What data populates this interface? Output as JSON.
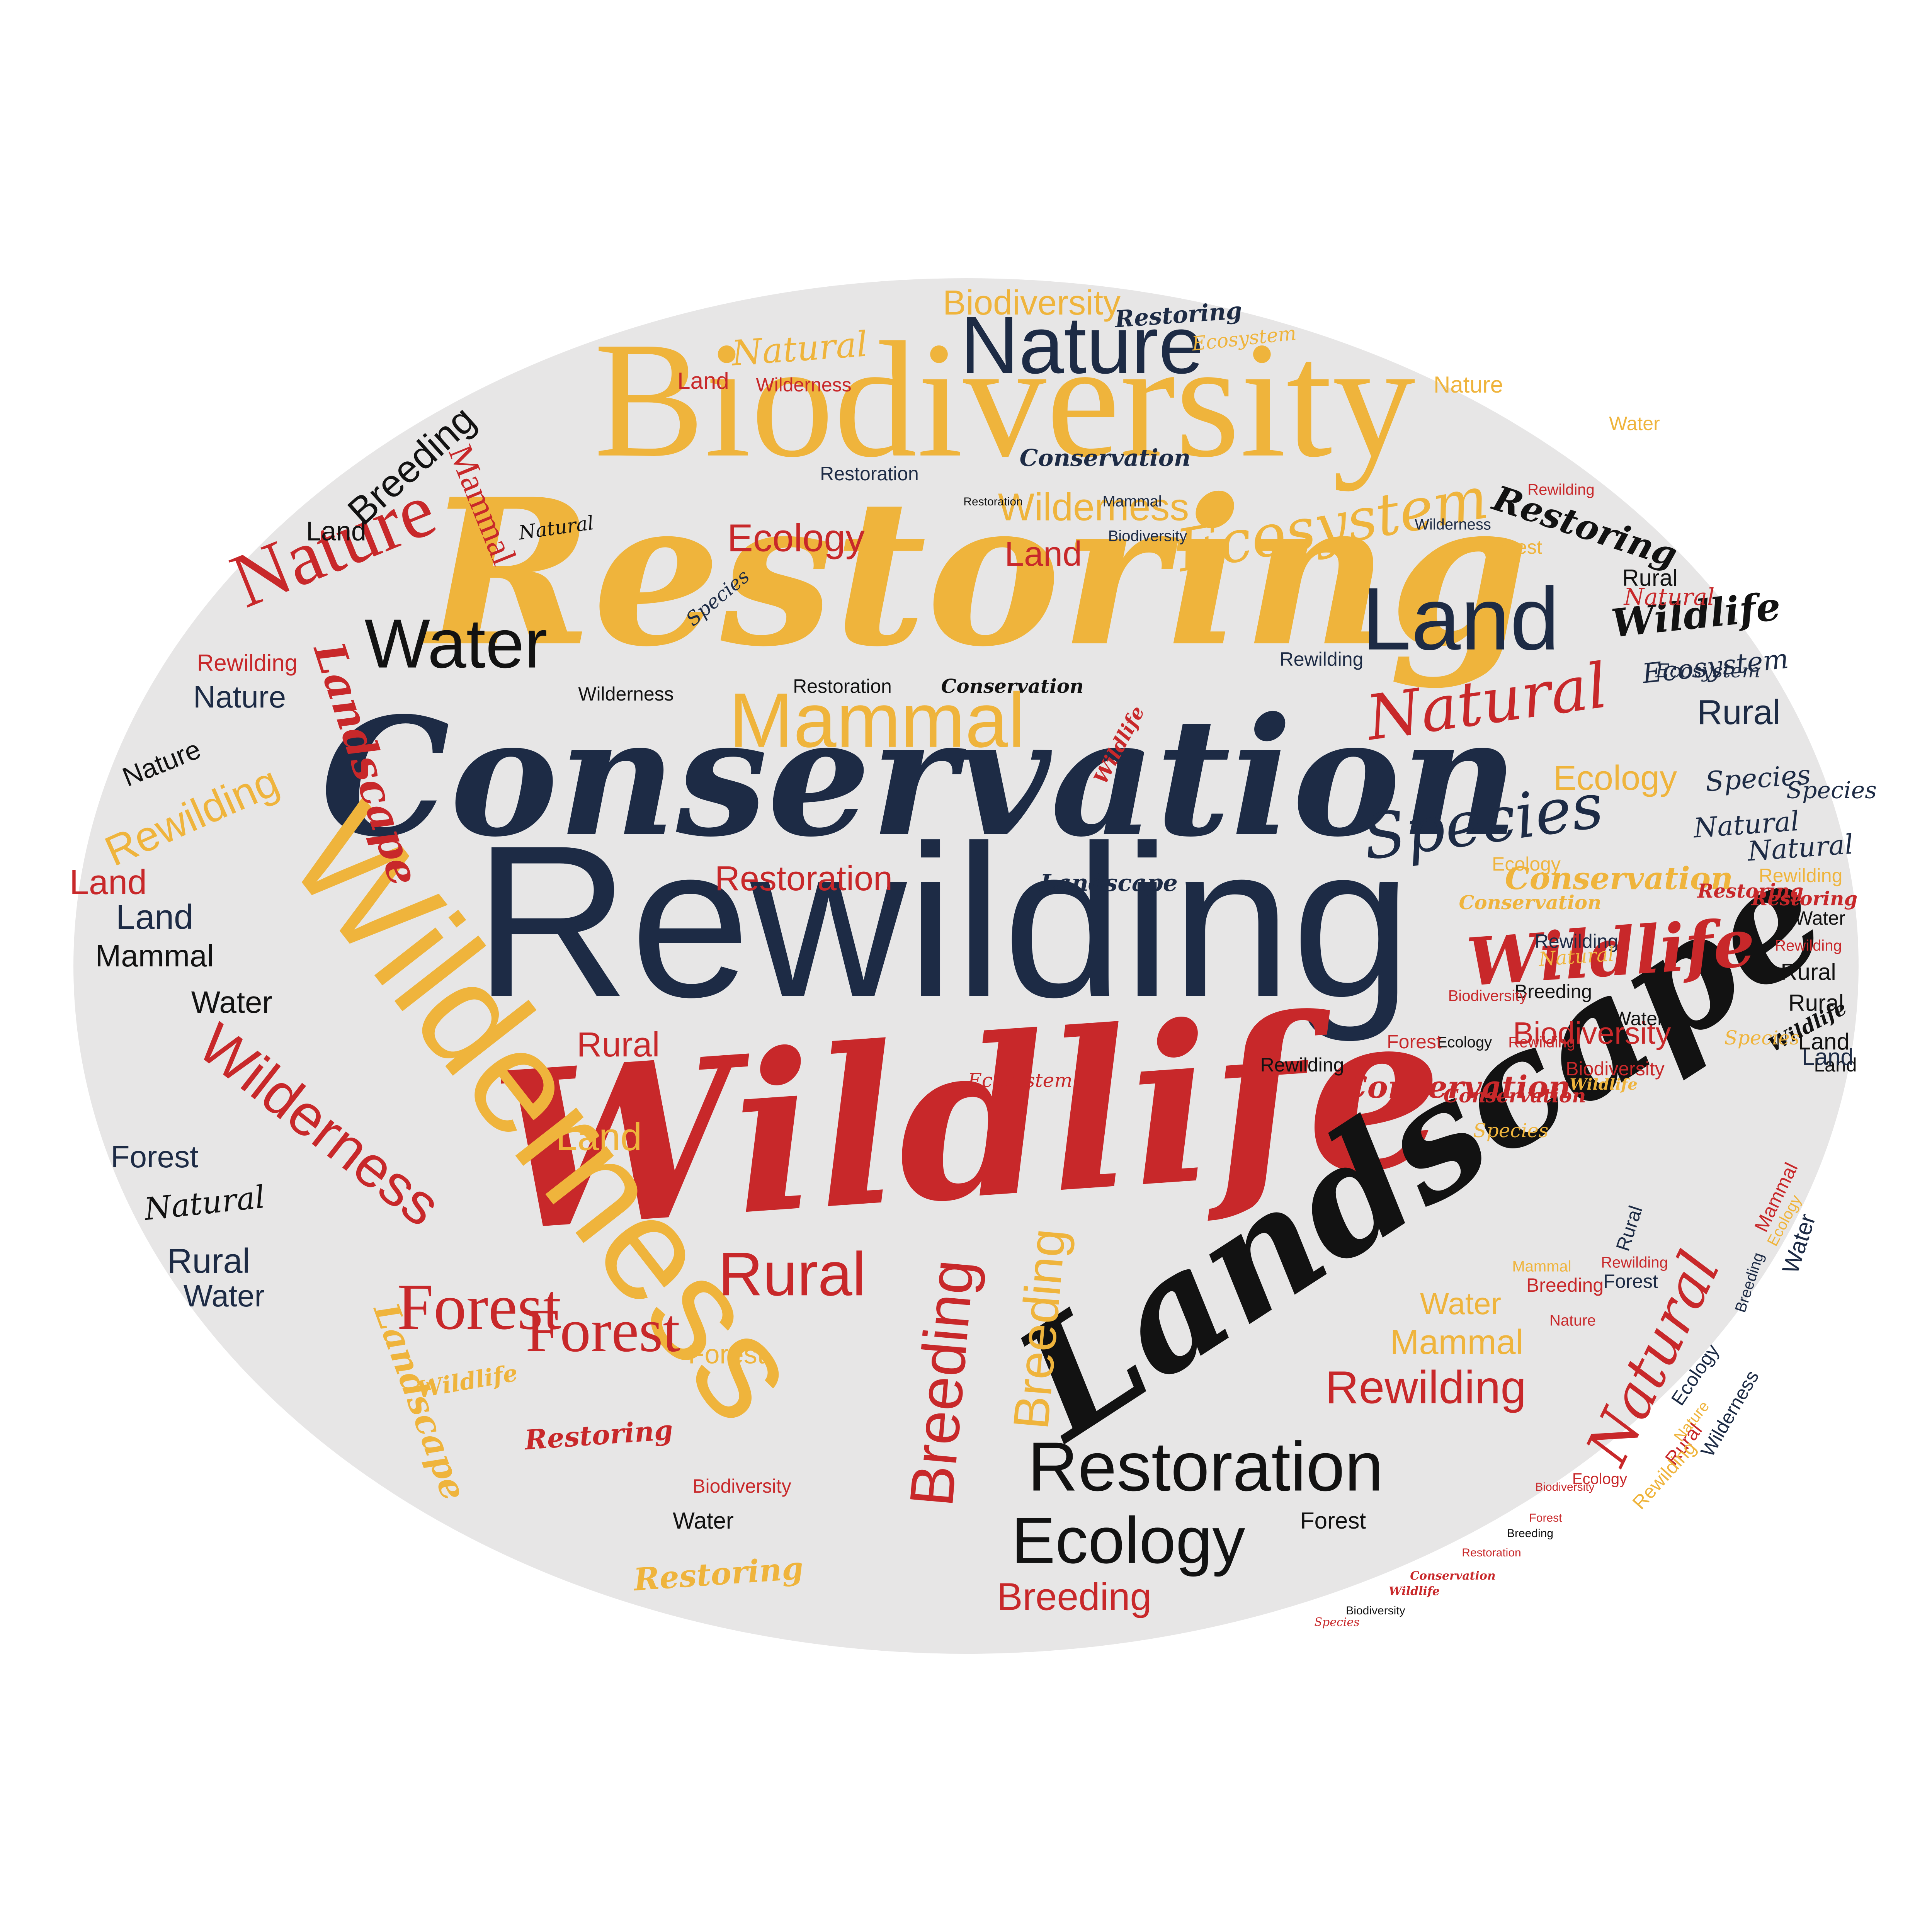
{
  "colors": {
    "background": "#ffffff",
    "ellipse": "#e7e6e6",
    "navy": "#1d2b45",
    "gold": "#efb43c",
    "red": "#c8282a",
    "black": "#121212"
  },
  "words": [
    {
      "text": "Conservation",
      "color": "navy"
    },
    {
      "text": "Rewilding",
      "color": "navy"
    },
    {
      "text": "Wildlife",
      "color": "red"
    },
    {
      "text": "Restoring",
      "color": "gold"
    },
    {
      "text": "Biodiversity",
      "color": "gold"
    },
    {
      "text": "Landscape",
      "color": "black"
    },
    {
      "text": "Wilderness",
      "color": "gold"
    },
    {
      "text": "Nature",
      "color": "navy"
    },
    {
      "text": "Land",
      "color": "navy"
    },
    {
      "text": "Water",
      "color": "black"
    },
    {
      "text": "Nature",
      "color": "red"
    },
    {
      "text": "Mammal",
      "color": "gold"
    },
    {
      "text": "Natural",
      "color": "red"
    },
    {
      "text": "Species",
      "color": "navy"
    },
    {
      "text": "Ecosystem",
      "color": "gold"
    },
    {
      "text": "Wilderness",
      "color": "gold"
    },
    {
      "text": "Ecology",
      "color": "red"
    },
    {
      "text": "Land",
      "color": "red"
    },
    {
      "text": "Wildlife",
      "color": "red"
    },
    {
      "text": "Restoration",
      "color": "black"
    },
    {
      "text": "Ecology",
      "color": "black"
    },
    {
      "text": "Forest",
      "color": "red"
    },
    {
      "text": "Forest",
      "color": "red"
    },
    {
      "text": "Rural",
      "color": "red"
    },
    {
      "text": "Breeding",
      "color": "red"
    },
    {
      "text": "Wilderness",
      "color": "red"
    },
    {
      "text": "Rewilding",
      "color": "gold"
    },
    {
      "text": "Mammal",
      "color": "red"
    },
    {
      "text": "Breeding",
      "color": "black"
    },
    {
      "text": "Landscape",
      "color": "red"
    },
    {
      "text": "Restoring",
      "color": "black"
    },
    {
      "text": "Wildlife",
      "color": "black"
    },
    {
      "text": "Ecosystem",
      "color": "navy"
    },
    {
      "text": "Natural",
      "color": "red"
    },
    {
      "text": "Rural",
      "color": "navy"
    },
    {
      "text": "Ecology",
      "color": "gold"
    },
    {
      "text": "Species",
      "color": "navy"
    },
    {
      "text": "Natural",
      "color": "navy"
    },
    {
      "text": "Conservation",
      "color": "gold"
    },
    {
      "text": "Restoring",
      "color": "red"
    },
    {
      "text": "Biodiversity",
      "color": "red"
    },
    {
      "text": "Conservation",
      "color": "red"
    },
    {
      "text": "Rewilding",
      "color": "red"
    },
    {
      "text": "Mammal",
      "color": "gold"
    },
    {
      "text": "Water",
      "color": "gold"
    },
    {
      "text": "Breeding",
      "color": "gold"
    },
    {
      "text": "Rural",
      "color": "red"
    },
    {
      "text": "Land",
      "color": "gold"
    },
    {
      "text": "Restoration",
      "color": "red"
    },
    {
      "text": "Breeding",
      "color": "red"
    },
    {
      "text": "Restoring",
      "color": "gold"
    },
    {
      "text": "Forest",
      "color": "gold"
    },
    {
      "text": "Restoring",
      "color": "red"
    },
    {
      "text": "Wildlife",
      "color": "gold"
    },
    {
      "text": "Land",
      "color": "black"
    },
    {
      "text": "Water",
      "color": "black"
    },
    {
      "text": "Mammal",
      "color": "black"
    },
    {
      "text": "Land",
      "color": "red"
    },
    {
      "text": "Land",
      "color": "navy"
    },
    {
      "text": "Water",
      "color": "navy"
    },
    {
      "text": "Forest",
      "color": "navy"
    },
    {
      "text": "Rural",
      "color": "navy"
    },
    {
      "text": "Water",
      "color": "black"
    },
    {
      "text": "Natural",
      "color": "black"
    },
    {
      "text": "Nature",
      "color": "navy"
    },
    {
      "text": "Nature",
      "color": "black"
    },
    {
      "text": "Rewilding",
      "color": "red"
    },
    {
      "text": "Wilderness",
      "color": "black"
    },
    {
      "text": "Restoration",
      "color": "black"
    },
    {
      "text": "Conservation",
      "color": "black"
    },
    {
      "text": "Wildlife",
      "color": "red"
    },
    {
      "text": "Ecosystem",
      "color": "red"
    },
    {
      "text": "Landscape",
      "color": "gold"
    },
    {
      "text": "Landscape",
      "color": "navy"
    },
    {
      "text": "Rewilding",
      "color": "red"
    },
    {
      "text": "Biodiversity",
      "color": "gold"
    },
    {
      "text": "Restoring",
      "color": "navy"
    },
    {
      "text": "Ecosystem",
      "color": "gold"
    },
    {
      "text": "Natural",
      "color": "gold"
    },
    {
      "text": "Wilderness",
      "color": "red"
    },
    {
      "text": "Land",
      "color": "red"
    },
    {
      "text": "Biodiversity",
      "color": "red"
    },
    {
      "text": "Restoration",
      "color": "black"
    },
    {
      "text": "Breeding",
      "color": "black"
    },
    {
      "text": "Rewilding",
      "color": "navy"
    },
    {
      "text": "Nature",
      "color": "gold"
    },
    {
      "text": "Natural",
      "color": "gold"
    },
    {
      "text": "Water",
      "color": "gold"
    },
    {
      "text": "Conservation",
      "color": "navy"
    },
    {
      "text": "Restoration",
      "color": "navy"
    },
    {
      "text": "Wilderness",
      "color": "navy"
    },
    {
      "text": "Biodiversity",
      "color": "navy"
    },
    {
      "text": "Mammal",
      "color": "navy"
    },
    {
      "text": "Natural",
      "color": "black"
    },
    {
      "text": "Species",
      "color": "navy"
    },
    {
      "text": "Biodiversity",
      "color": "red"
    },
    {
      "text": "Rewilding",
      "color": "red"
    },
    {
      "text": "Ecology",
      "color": "black"
    },
    {
      "text": "Rewilding",
      "color": "black"
    },
    {
      "text": "Forest",
      "color": "black"
    },
    {
      "text": "Rewilding",
      "color": "navy"
    },
    {
      "text": "Ecosystem",
      "color": "navy"
    },
    {
      "text": "Rural",
      "color": "black"
    },
    {
      "text": "Natural",
      "color": "red"
    },
    {
      "text": "Forest",
      "color": "gold"
    },
    {
      "text": "Rural",
      "color": "black"
    },
    {
      "text": "Ecology",
      "color": "gold"
    },
    {
      "text": "Species",
      "color": "navy"
    },
    {
      "text": "Water",
      "color": "black"
    },
    {
      "text": "Land",
      "color": "black"
    },
    {
      "text": "Natural",
      "color": "navy"
    },
    {
      "text": "Conservation",
      "color": "gold"
    },
    {
      "text": "Rewilding",
      "color": "gold"
    },
    {
      "text": "Restoring",
      "color": "red"
    },
    {
      "text": "Water",
      "color": "black"
    },
    {
      "text": "Rewilding",
      "color": "red"
    },
    {
      "text": "Rural",
      "color": "black"
    },
    {
      "text": "Wildlife",
      "color": "black"
    },
    {
      "text": "Land",
      "color": "black"
    },
    {
      "text": "Land",
      "color": "navy"
    },
    {
      "text": "Biodiversity",
      "color": "red"
    },
    {
      "text": "Species",
      "color": "gold"
    },
    {
      "text": "Forest",
      "color": "red"
    },
    {
      "text": "Conservation",
      "color": "red"
    },
    {
      "text": "Wildlife",
      "color": "gold"
    },
    {
      "text": "Species",
      "color": "gold"
    },
    {
      "text": "Breeding",
      "color": "red"
    },
    {
      "text": "Nature",
      "color": "red"
    },
    {
      "text": "Mammal",
      "color": "gold"
    },
    {
      "text": "Rewilding",
      "color": "red"
    },
    {
      "text": "Forest",
      "color": "navy"
    },
    {
      "text": "Rural",
      "color": "navy"
    },
    {
      "text": "Breeding",
      "color": "navy"
    },
    {
      "text": "Mammal",
      "color": "red"
    },
    {
      "text": "Ecology",
      "color": "gold"
    },
    {
      "text": "Water",
      "color": "navy"
    },
    {
      "text": "Ecology",
      "color": "navy"
    },
    {
      "text": "Wilderness",
      "color": "navy"
    },
    {
      "text": "Nature",
      "color": "gold"
    },
    {
      "text": "Rural",
      "color": "red"
    },
    {
      "text": "Rewilding",
      "color": "gold"
    },
    {
      "text": "Ecology",
      "color": "red"
    },
    {
      "text": "Biodiversity",
      "color": "red"
    },
    {
      "text": "Forest",
      "color": "red"
    },
    {
      "text": "Breeding",
      "color": "black"
    },
    {
      "text": "Restoration",
      "color": "red"
    },
    {
      "text": "Conservation",
      "color": "red"
    },
    {
      "text": "Wildlife",
      "color": "red"
    },
    {
      "text": "Biodiversity",
      "color": "black"
    },
    {
      "text": "Species",
      "color": "red"
    }
  ]
}
